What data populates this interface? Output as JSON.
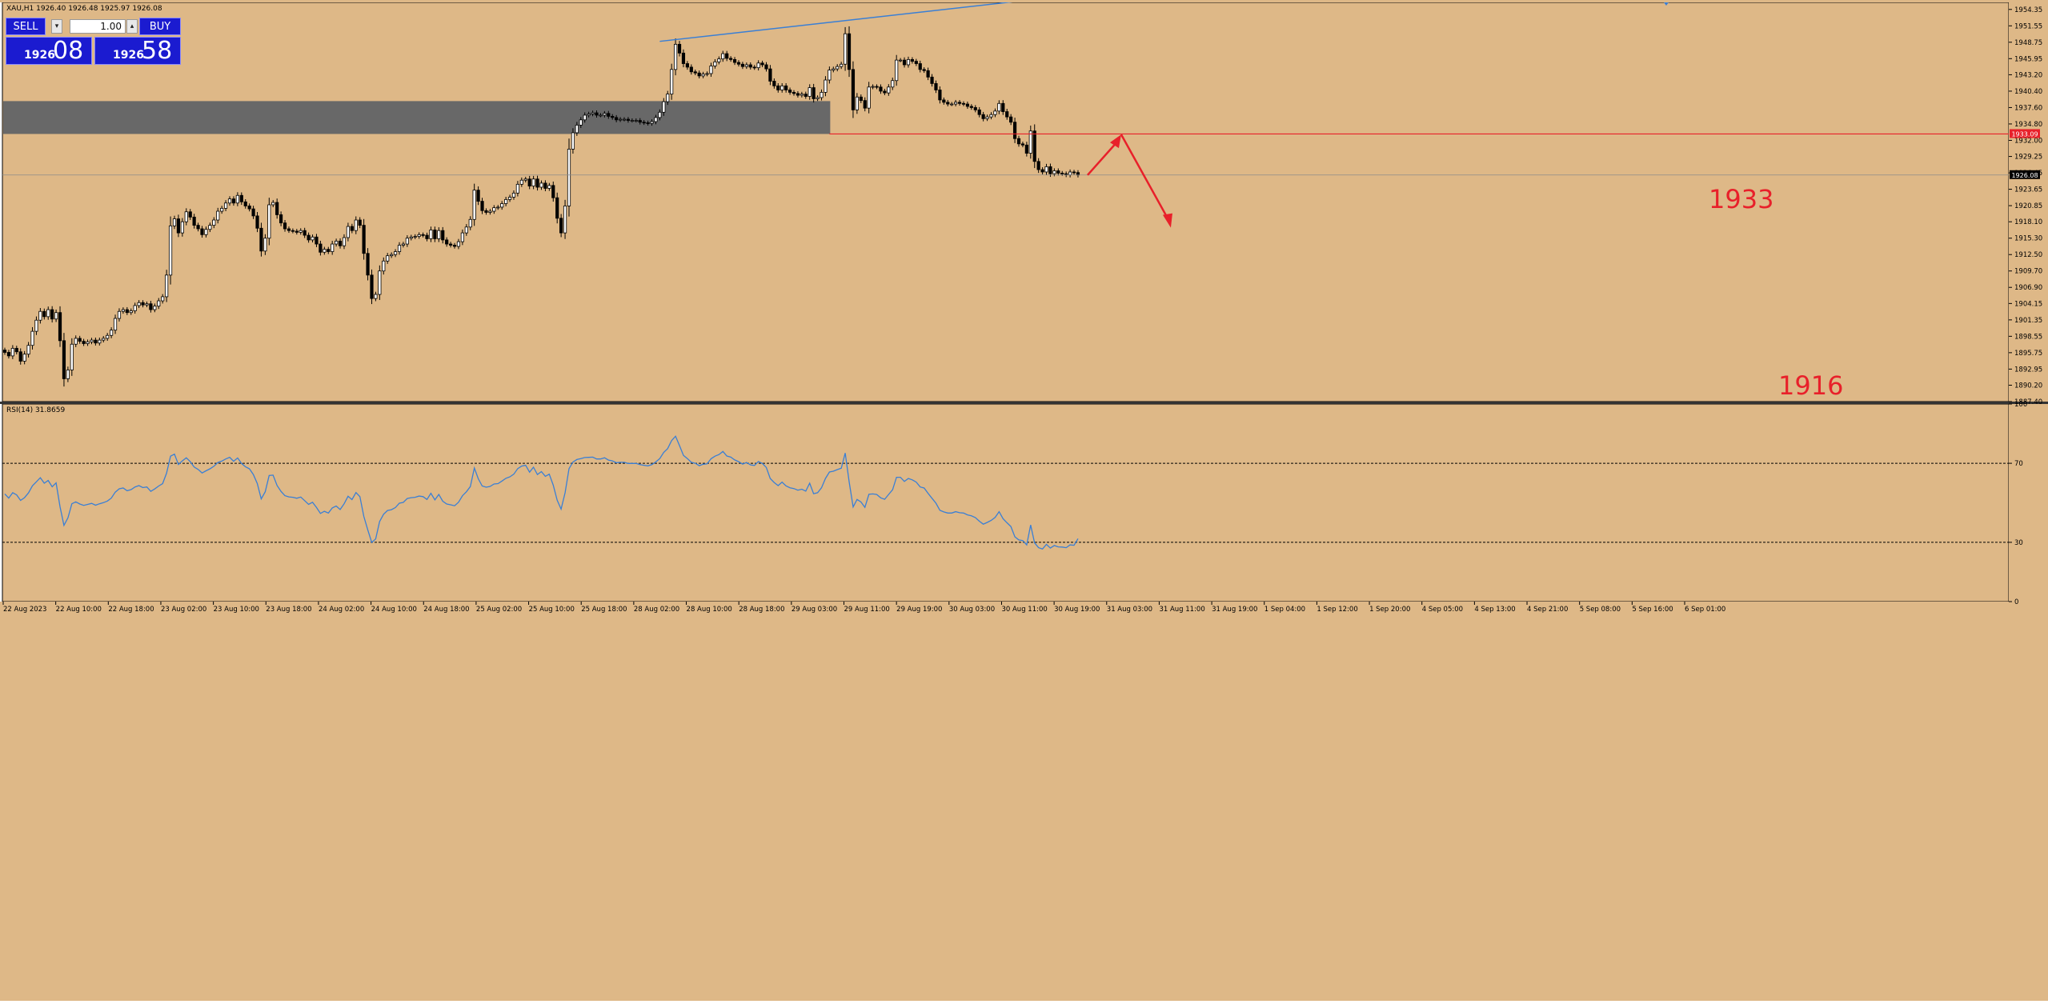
{
  "window": {
    "header": "XAU,H1   1926.40  1926.48  1925.97  1926.08"
  },
  "trade_panel": {
    "sell_label": "SELL",
    "buy_label": "BUY",
    "lot_value": "1.00",
    "sell_price_small": "1926",
    "sell_price_big": "08",
    "buy_price_small": "1926",
    "buy_price_big": "58"
  },
  "colors": {
    "background": "#deb887",
    "candle_bull": "#ffffff",
    "candle_bear": "#000000",
    "zone": "#686868",
    "level_line": "#e8202a",
    "trendline": "#3a7fd5",
    "rsi_line": "#3a7fd5",
    "annotation": "#e8202a",
    "price_tag_red": "#e8202a",
    "price_tag_black": "#000000"
  },
  "chart_data": [
    {
      "type": "candlestick",
      "symbol": "XAU",
      "timeframe": "H1",
      "ylim": [
        1887.4,
        1955.55
      ],
      "price_axis_ticks": [
        "1954.35",
        "1951.55",
        "1948.75",
        "1945.95",
        "1943.20",
        "1940.40",
        "1937.60",
        "1934.80",
        "1932.00",
        "1929.25",
        "1926.45",
        "1923.65",
        "1920.85",
        "1918.10",
        "1915.30",
        "1912.50",
        "1909.70",
        "1906.90",
        "1904.15",
        "1901.35",
        "1898.55",
        "1895.75",
        "1892.95",
        "1890.20",
        "1887.40"
      ],
      "time_axis_labels": [
        "22 Aug 2023",
        "22 Aug 10:00",
        "22 Aug 18:00",
        "23 Aug 02:00",
        "23 Aug 10:00",
        "23 Aug 18:00",
        "24 Aug 02:00",
        "24 Aug 10:00",
        "24 Aug 18:00",
        "25 Aug 02:00",
        "25 Aug 10:00",
        "25 Aug 18:00",
        "28 Aug 02:00",
        "28 Aug 10:00",
        "28 Aug 18:00",
        "29 Aug 03:00",
        "29 Aug 11:00",
        "29 Aug 19:00",
        "30 Aug 03:00",
        "30 Aug 11:00",
        "30 Aug 19:00",
        "31 Aug 03:00",
        "31 Aug 11:00",
        "31 Aug 19:00",
        "1 Sep 04:00",
        "1 Sep 12:00",
        "1 Sep 20:00",
        "4 Sep 05:00",
        "4 Sep 13:00",
        "4 Sep 21:00",
        "5 Sep 08:00",
        "5 Sep 16:00",
        "6 Sep 01:00"
      ],
      "closes": [
        1895.8,
        1895.2,
        1896.5,
        1895.9,
        1894.3,
        1895.5,
        1897.0,
        1899.4,
        1901.3,
        1902.8,
        1901.9,
        1903.1,
        1901.5,
        1902.6,
        1897.8,
        1891.3,
        1892.8,
        1897.2,
        1898.2,
        1897.7,
        1897.3,
        1897.6,
        1897.9,
        1897.4,
        1897.9,
        1898.2,
        1898.7,
        1899.6,
        1901.6,
        1902.8,
        1903.1,
        1902.6,
        1902.9,
        1903.8,
        1904.3,
        1903.9,
        1904.1,
        1903.1,
        1903.7,
        1904.6,
        1905.3,
        1909.0,
        1917.4,
        1918.6,
        1916.2,
        1918.1,
        1919.8,
        1918.9,
        1917.5,
        1916.9,
        1915.9,
        1916.8,
        1917.5,
        1918.4,
        1919.9,
        1920.4,
        1921.3,
        1922.0,
        1921.3,
        1922.6,
        1921.5,
        1920.8,
        1920.3,
        1919.1,
        1917.0,
        1913.1,
        1915.3,
        1921.0,
        1921.4,
        1919.3,
        1917.9,
        1916.9,
        1916.6,
        1916.5,
        1916.3,
        1916.6,
        1915.8,
        1915.0,
        1915.5,
        1914.3,
        1912.9,
        1913.4,
        1913.0,
        1914.3,
        1914.8,
        1914.0,
        1915.4,
        1917.3,
        1916.6,
        1918.4,
        1917.5,
        1912.7,
        1909.0,
        1905.0,
        1905.7,
        1909.7,
        1911.4,
        1912.3,
        1912.5,
        1913.0,
        1914.1,
        1914.3,
        1915.3,
        1915.5,
        1915.6,
        1915.9,
        1915.8,
        1915.2,
        1916.7,
        1915.2,
        1916.6,
        1915.0,
        1914.3,
        1914.1,
        1913.9,
        1914.7,
        1916.2,
        1917.2,
        1918.5,
        1923.5,
        1921.6,
        1920.0,
        1919.7,
        1919.9,
        1920.5,
        1920.6,
        1921.2,
        1921.9,
        1922.3,
        1923.0,
        1924.5,
        1925.2,
        1925.4,
        1924.2,
        1925.4,
        1924.0,
        1924.7,
        1923.8,
        1924.3,
        1922.2,
        1918.7,
        1916.2,
        1920.8,
        1930.5,
        1933.3,
        1934.6,
        1935.5,
        1936.3,
        1936.5,
        1936.7,
        1936.3,
        1936.3,
        1936.6,
        1936.1,
        1935.9,
        1935.5,
        1935.6,
        1935.6,
        1935.4,
        1935.4,
        1935.4,
        1935.1,
        1935.0,
        1934.9,
        1935.2,
        1935.9,
        1936.8,
        1938.6,
        1939.9,
        1944.1,
        1948.4,
        1946.9,
        1945.1,
        1944.5,
        1943.7,
        1943.5,
        1943.0,
        1943.3,
        1943.4,
        1944.7,
        1945.4,
        1945.9,
        1946.8,
        1946.0,
        1945.8,
        1945.3,
        1945.0,
        1944.6,
        1944.9,
        1944.5,
        1944.4,
        1945.2,
        1944.9,
        1944.2,
        1942.1,
        1941.3,
        1940.6,
        1941.3,
        1940.6,
        1940.2,
        1940.0,
        1939.7,
        1939.9,
        1939.5,
        1941.0,
        1939.1,
        1939.3,
        1940.2,
        1942.3,
        1944.0,
        1944.2,
        1944.6,
        1945.0,
        1950.2,
        1944.1,
        1937.2,
        1939.4,
        1938.8,
        1937.5,
        1941.1,
        1941.2,
        1941.1,
        1940.4,
        1940.1,
        1941.1,
        1942.2,
        1945.7,
        1945.7,
        1944.9,
        1945.8,
        1945.5,
        1945.1,
        1944.1,
        1943.9,
        1942.8,
        1941.7,
        1940.6,
        1938.9,
        1938.5,
        1938.2,
        1938.2,
        1938.5,
        1938.3,
        1938.2,
        1937.8,
        1937.6,
        1937.2,
        1936.4,
        1935.7,
        1936.0,
        1936.4,
        1937.0,
        1938.3,
        1936.9,
        1936.0,
        1935.1,
        1932.3,
        1931.4,
        1931.2,
        1929.8,
        1933.6,
        1928.4,
        1927.0,
        1926.6,
        1927.5,
        1926.3,
        1926.8,
        1926.4,
        1926.3,
        1926.1,
        1926.6,
        1926.5,
        1926.08
      ],
      "current_price_tag": "1926.08",
      "level_price_tag": "1933.09",
      "resistance_zone": [
        1933.09,
        1938.7
      ],
      "trendline_points": [
        [
          "30 Aug 11:00",
          1948.9
        ],
        [
          "1 Sep 12:00",
          1952.9
        ]
      ],
      "annotations": {
        "up_target": "1933",
        "down_target": "1916"
      }
    },
    {
      "type": "line",
      "title": "RSI(14) 31.8659",
      "ylim": [
        0,
        100
      ],
      "axis_ticks": [
        "100",
        "70",
        "30",
        "0"
      ],
      "levels": [
        70,
        30
      ],
      "series": [
        {
          "values": [
            54.5,
            52.4,
            55.1,
            54.0,
            51.2,
            52.6,
            55.0,
            58.6,
            60.6,
            62.7,
            59.9,
            61.3,
            58.1,
            60.1,
            48.0,
            38.6,
            42.4,
            49.5,
            50.5,
            49.4,
            48.7,
            49.2,
            49.7,
            48.8,
            49.5,
            50.1,
            50.9,
            52.4,
            55.4,
            57.1,
            57.5,
            56.1,
            56.7,
            58.0,
            58.7,
            57.7,
            58.0,
            55.8,
            57.0,
            58.5,
            59.7,
            65.0,
            73.6,
            74.6,
            69.4,
            71.2,
            72.8,
            70.8,
            68.1,
            66.9,
            65.1,
            66.2,
            67.2,
            68.5,
            70.4,
            71.1,
            72.2,
            73.0,
            71.0,
            72.7,
            69.9,
            68.2,
            67.2,
            64.3,
            59.7,
            52.0,
            55.6,
            63.8,
            64.0,
            58.8,
            55.8,
            53.6,
            53.0,
            52.8,
            52.3,
            52.9,
            51.1,
            49.2,
            50.3,
            47.6,
            44.6,
            45.7,
            44.8,
            47.4,
            48.4,
            46.6,
            49.5,
            53.3,
            51.6,
            55.2,
            53.1,
            43.1,
            36.2,
            29.9,
            31.7,
            40.5,
            44.2,
            46.1,
            46.5,
            47.6,
            49.8,
            50.2,
            52.2,
            52.6,
            52.8,
            53.4,
            53.1,
            51.7,
            54.8,
            51.5,
            54.2,
            50.8,
            49.4,
            49.0,
            48.5,
            50.3,
            53.6,
            55.6,
            58.2,
            67.6,
            62.2,
            58.5,
            57.9,
            58.3,
            59.5,
            59.7,
            61.0,
            62.4,
            63.1,
            64.5,
            67.3,
            68.6,
            69.0,
            65.5,
            68.0,
            64.3,
            65.8,
            63.4,
            64.5,
            58.9,
            51.3,
            46.8,
            55.1,
            67.3,
            70.6,
            71.9,
            72.4,
            72.9,
            73.0,
            73.1,
            72.2,
            72.2,
            72.8,
            71.6,
            71.2,
            70.3,
            70.5,
            70.5,
            69.9,
            69.9,
            69.9,
            69.3,
            69.0,
            68.7,
            69.3,
            70.7,
            72.4,
            75.5,
            77.4,
            81.5,
            83.7,
            79.0,
            74.0,
            72.4,
            70.5,
            70.0,
            68.8,
            69.5,
            69.7,
            72.3,
            73.6,
            74.4,
            76.0,
            73.7,
            73.1,
            71.7,
            70.8,
            69.6,
            70.4,
            69.2,
            68.9,
            70.9,
            69.9,
            67.9,
            62.3,
            60.3,
            58.7,
            60.5,
            58.6,
            57.6,
            57.2,
            56.4,
            56.9,
            55.9,
            59.9,
            54.6,
            55.1,
            57.6,
            62.3,
            65.6,
            66.0,
            66.8,
            67.5,
            75.2,
            60.7,
            47.9,
            51.7,
            50.4,
            47.7,
            54.3,
            54.5,
            54.2,
            52.5,
            51.8,
            54.2,
            56.6,
            62.9,
            62.9,
            60.8,
            62.3,
            61.6,
            60.5,
            58.0,
            57.5,
            54.8,
            52.3,
            49.8,
            46.2,
            45.4,
            44.8,
            44.8,
            45.5,
            45.0,
            44.8,
            43.9,
            43.4,
            42.5,
            40.7,
            39.2,
            40.1,
            41.1,
            42.6,
            45.5,
            42.0,
            39.9,
            38.0,
            32.8,
            31.2,
            30.9,
            28.7,
            38.8,
            29.7,
            27.3,
            26.6,
            29.0,
            27.1,
            28.4,
            27.7,
            27.6,
            27.3,
            28.7,
            28.5,
            31.87
          ]
        }
      ]
    }
  ]
}
